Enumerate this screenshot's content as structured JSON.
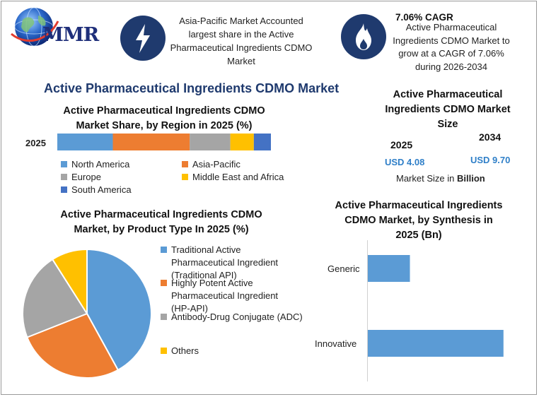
{
  "brand": {
    "logo_text": "MMR"
  },
  "highlights": [
    {
      "icon": "lightning-bolt-icon",
      "text": "Asia-Pacific Market Accounted largest share in the Active Pharmaceutical Ingredients CDMO Market"
    },
    {
      "icon": "flame-icon",
      "title": "7.06% CAGR",
      "text": "Active Pharmaceutical Ingredients CDMO Market to grow at a CAGR of 7.06% during 2026-2034"
    }
  ],
  "main_title": "Active Pharmaceutical Ingredients CDMO Market",
  "colors": {
    "blue": "#5b9bd5",
    "orange": "#ed7d31",
    "gray": "#a5a5a5",
    "yellow": "#ffc000",
    "darkblue": "#4472c4",
    "accent_blue": "#2f7fc8",
    "navy": "#1f3a6e"
  },
  "market_size": {
    "title": "Active Pharmaceutical Ingredients CDMO Market Size",
    "year_start": "2025",
    "year_end": "2034",
    "value_start": "USD 4.08",
    "value_end": "USD 9.70",
    "unit_label": "Market Size in ",
    "unit_bold": "Billion"
  },
  "chart_data": [
    {
      "type": "bar",
      "orientation": "horizontal-stacked",
      "title": "Active Pharmaceutical Ingredients CDMO Market Share, by Region in 2025 (%)",
      "categories": [
        "2025"
      ],
      "series": [
        {
          "name": "North America",
          "values": [
            26
          ],
          "color": "#5b9bd5"
        },
        {
          "name": "Asia-Pacific",
          "values": [
            36
          ],
          "color": "#ed7d31"
        },
        {
          "name": "Europe",
          "values": [
            19
          ],
          "color": "#a5a5a5"
        },
        {
          "name": "Middle East and Africa",
          "values": [
            11
          ],
          "color": "#ffc000"
        },
        {
          "name": "South America",
          "values": [
            8
          ],
          "color": "#4472c4"
        }
      ],
      "legend": "bottom"
    },
    {
      "type": "pie",
      "title": "Active Pharmaceutical Ingredients CDMO Market, by Product Type In 2025 (%)",
      "slices": [
        {
          "name": "Traditional Active Pharmaceutical Ingredient (Traditional API)",
          "value": 42,
          "color": "#5b9bd5"
        },
        {
          "name": "Highly Potent Active Pharmaceutical Ingredient (HP-API)",
          "value": 27,
          "color": "#ed7d31"
        },
        {
          "name": "Antibody-Drug Conjugate (ADC)",
          "value": 22,
          "color": "#a5a5a5"
        },
        {
          "name": "Others",
          "value": 9,
          "color": "#ffc000"
        }
      ],
      "legend": "right"
    },
    {
      "type": "bar",
      "orientation": "horizontal",
      "title": "Active Pharmaceutical Ingredients CDMO Market, by Synthesis in 2025 (Bn)",
      "categories": [
        "Generic",
        "Innovative"
      ],
      "values": [
        0.9,
        2.9
      ],
      "xlim": [
        0,
        3.1
      ],
      "color": "#5b9bd5"
    }
  ]
}
